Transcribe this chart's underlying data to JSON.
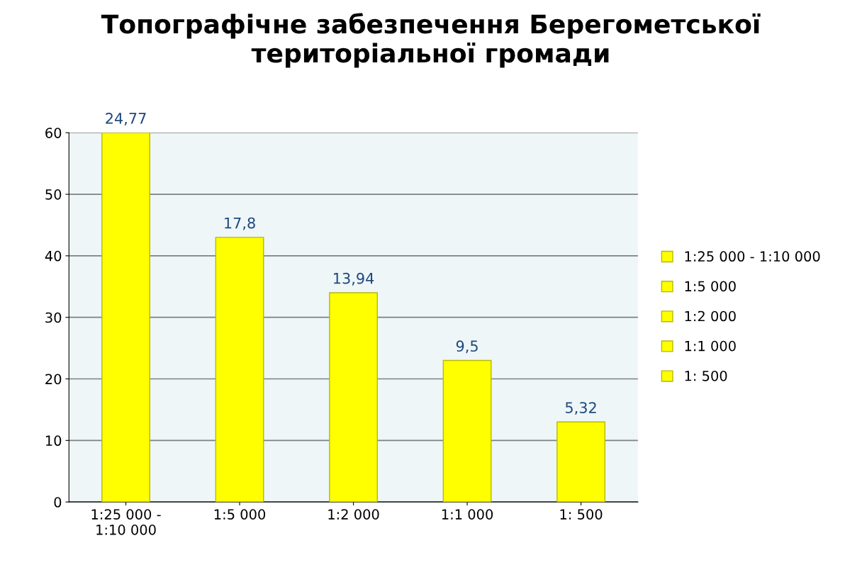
{
  "chart_data": {
    "type": "bar",
    "title": "Топографічне забезпечення Берегометської територіальної громади",
    "categories": [
      "1:25 000 -\n1:10 000",
      "1:5 000",
      "1:2 000",
      "1:1 000",
      "1: 500"
    ],
    "series": [
      {
        "name": "1:25 000 - 1:10 000",
        "color": "#ffff00",
        "values": [
          60,
          null,
          null,
          null,
          null
        ]
      },
      {
        "name": "1:5 000",
        "color": "#ffff00",
        "values": [
          null,
          43,
          null,
          null,
          null
        ]
      },
      {
        "name": "1:2 000",
        "color": "#ffff00",
        "values": [
          null,
          null,
          34,
          null,
          null
        ]
      },
      {
        "name": "1:1 000",
        "color": "#ffff00",
        "values": [
          null,
          null,
          null,
          23,
          null
        ]
      },
      {
        "name": "1: 500",
        "color": "#ffff00",
        "values": [
          null,
          null,
          null,
          null,
          13
        ]
      }
    ],
    "annotations": [
      {
        "text": "24,77",
        "x": "1:25 000 -\n1:10 000",
        "y": 60
      },
      {
        "text": "17,8",
        "x": "1:5 000",
        "y": 43
      },
      {
        "text": "13,94",
        "x": "1:2 000",
        "y": 34
      },
      {
        "text": "9,5",
        "x": "1:1 000",
        "y": 23
      },
      {
        "text": "5,32",
        "x": "1: 500",
        "y": 13
      }
    ],
    "ylim": [
      0,
      60
    ],
    "yticks": [
      0,
      10,
      20,
      30,
      40,
      50,
      60
    ],
    "grid": "y",
    "legend": "right"
  }
}
